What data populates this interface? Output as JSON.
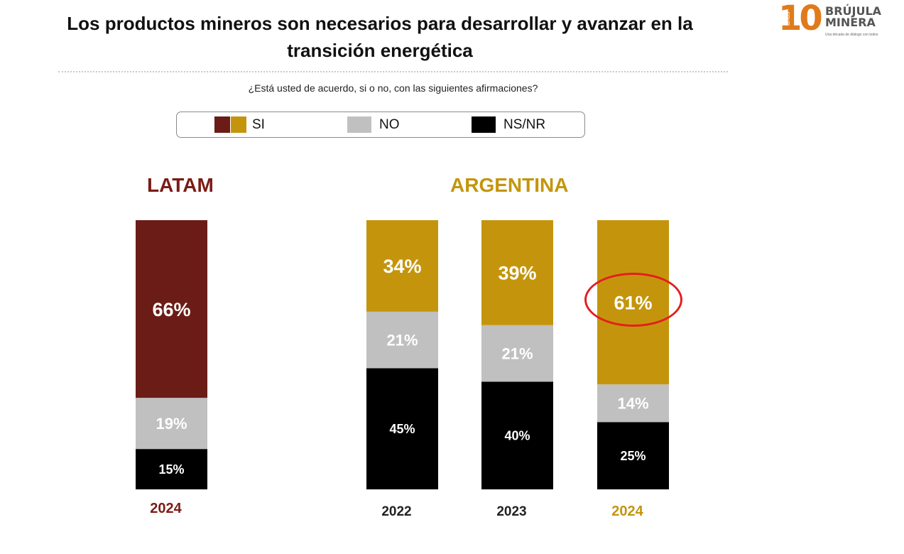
{
  "title": "Los productos mineros son necesarios para desarrollar y avanzar en la transición energética",
  "question": "¿Está usted de acuerdo, si o no, con las siguientes afirmaciones?",
  "logo": {
    "number": "10",
    "anos": "años",
    "line1": "BRÚJULA",
    "line2": "MINERA",
    "tagline": "Una década de diálogo con todos"
  },
  "legend": {
    "si": "SI",
    "no": "NO",
    "nsnr": "NS/NR",
    "colors": {
      "si_latam": "#6b1c16",
      "si_arg": "#c4950c",
      "no": "#c0c0c0",
      "nsnr": "#000000"
    }
  },
  "groups": {
    "latam": "LATAM",
    "argentina": "ARGENTINA"
  },
  "chart_data": {
    "type": "bar",
    "stacked": true,
    "title": "Los productos mineros son necesarios para desarrollar y avanzar en la transición energética",
    "categories": [
      "2024",
      "2022",
      "2023",
      "2024"
    ],
    "category_groups": [
      "LATAM",
      "ARGENTINA",
      "ARGENTINA",
      "ARGENTINA"
    ],
    "series": [
      {
        "name": "NS/NR",
        "values": [
          15,
          45,
          40,
          25
        ],
        "labels": [
          "15%",
          "45%",
          "40%",
          "25%"
        ]
      },
      {
        "name": "NO",
        "values": [
          19,
          21,
          21,
          14
        ],
        "labels": [
          "19%",
          "21%",
          "21%",
          "14%"
        ]
      },
      {
        "name": "SI",
        "values": [
          66,
          34,
          39,
          61
        ],
        "labels": [
          "66%",
          "34%",
          "39%",
          "61%"
        ]
      }
    ],
    "ylim": [
      0,
      100
    ],
    "highlight": {
      "category_index": 3,
      "series": "SI",
      "label": "61%"
    }
  }
}
